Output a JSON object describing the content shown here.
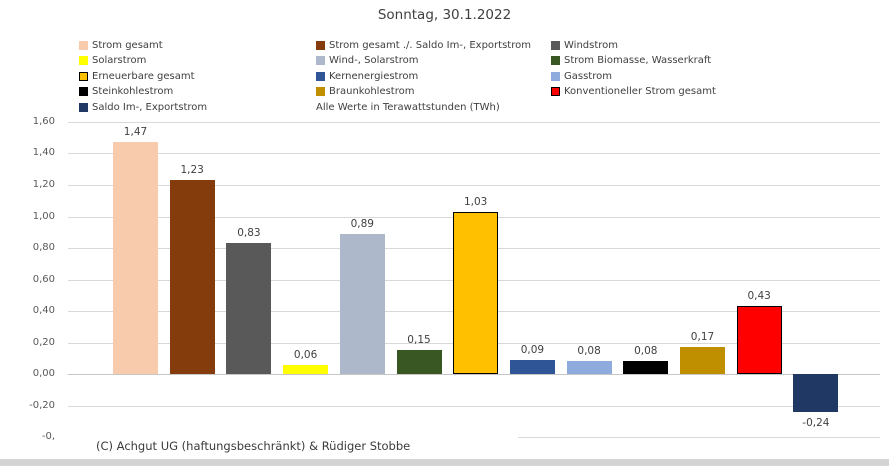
{
  "title": "Sonntag, 30.1.2022",
  "note": "Alle Werte in Terawattstunden (TWh)",
  "footer": "(C) Achgut UG (haftungsbeschränkt) & Rüdiger Stobbe",
  "legend": {
    "columns": [
      [
        {
          "label": "Strom gesamt",
          "color": "#F8CBAD",
          "border": false
        },
        {
          "label": "Solarstrom",
          "color": "#FFFF00",
          "border": false
        },
        {
          "label": "Erneuerbare gesamt",
          "color": "#FFC000",
          "border": true
        },
        {
          "label": "Steinkohlestrom",
          "color": "#000000",
          "border": false
        },
        {
          "label": "Saldo Im-, Exportstrom",
          "color": "#1F3864",
          "border": false
        }
      ],
      [
        {
          "label": "Strom gesamt ./. Saldo Im-, Exportstrom",
          "color": "#843C0C",
          "border": false
        },
        {
          "label": "Wind-, Solarstrom",
          "color": "#ADB9CA",
          "border": false
        },
        {
          "label": "Kernenergiestrom",
          "color": "#2F5597",
          "border": false
        },
        {
          "label": "Braunkohlestrom",
          "color": "#BF8F00",
          "border": false
        }
      ],
      [
        {
          "label": "Windstrom",
          "color": "#595959",
          "border": false
        },
        {
          "label": "Strom Biomasse, Wasserkraft",
          "color": "#385723",
          "border": false
        },
        {
          "label": "Gasstrom",
          "color": "#8FAADC",
          "border": false
        },
        {
          "label": "Konventioneller Strom gesamt",
          "color": "#FF0000",
          "border": true
        }
      ]
    ]
  },
  "chart_data": {
    "type": "bar",
    "title": "Sonntag, 30.1.2022",
    "unit_note": "Alle Werte in Terawattstunden (TWh)",
    "categories": [
      "Strom gesamt",
      "Strom gesamt ./. Saldo Im-, Exportstrom",
      "Windstrom",
      "Solarstrom",
      "Wind-, Solarstrom",
      "Strom Biomasse, Wasserkraft",
      "Erneuerbare gesamt",
      "Kernenergiestrom",
      "Gasstrom",
      "Steinkohlestrom",
      "Braunkohlestrom",
      "Konventioneller Strom gesamt",
      "Saldo Im-, Exportstrom"
    ],
    "values": [
      1.47,
      1.23,
      0.83,
      0.06,
      0.89,
      0.15,
      1.03,
      0.09,
      0.08,
      0.08,
      0.17,
      0.43,
      -0.24
    ],
    "value_labels": [
      "1,47",
      "1,23",
      "0,83",
      "0,06",
      "0,89",
      "0,15",
      "1,03",
      "0,09",
      "0,08",
      "0,08",
      "0,17",
      "0,43",
      "-0,24"
    ],
    "colors": [
      "#F8CBAD",
      "#843C0C",
      "#595959",
      "#FFFF00",
      "#ADB9CA",
      "#385723",
      "#FFC000",
      "#2F5597",
      "#8FAADC",
      "#000000",
      "#BF8F00",
      "#FF0000",
      "#1F3864"
    ],
    "bordered": [
      false,
      false,
      false,
      false,
      false,
      false,
      true,
      false,
      false,
      false,
      false,
      true,
      false
    ],
    "ylabel": "",
    "xlabel": "",
    "ylim": [
      -0.4,
      1.6
    ],
    "ytick_step": 0.2,
    "ytick_labels": [
      "1,60",
      "1,40",
      "1,20",
      "1,00",
      "0,80",
      "0,60",
      "0,40",
      "0,20",
      "0,00",
      "-0,20",
      "-0,"
    ],
    "grid": true,
    "legend_position": "top",
    "number_format": "comma-decimal"
  }
}
